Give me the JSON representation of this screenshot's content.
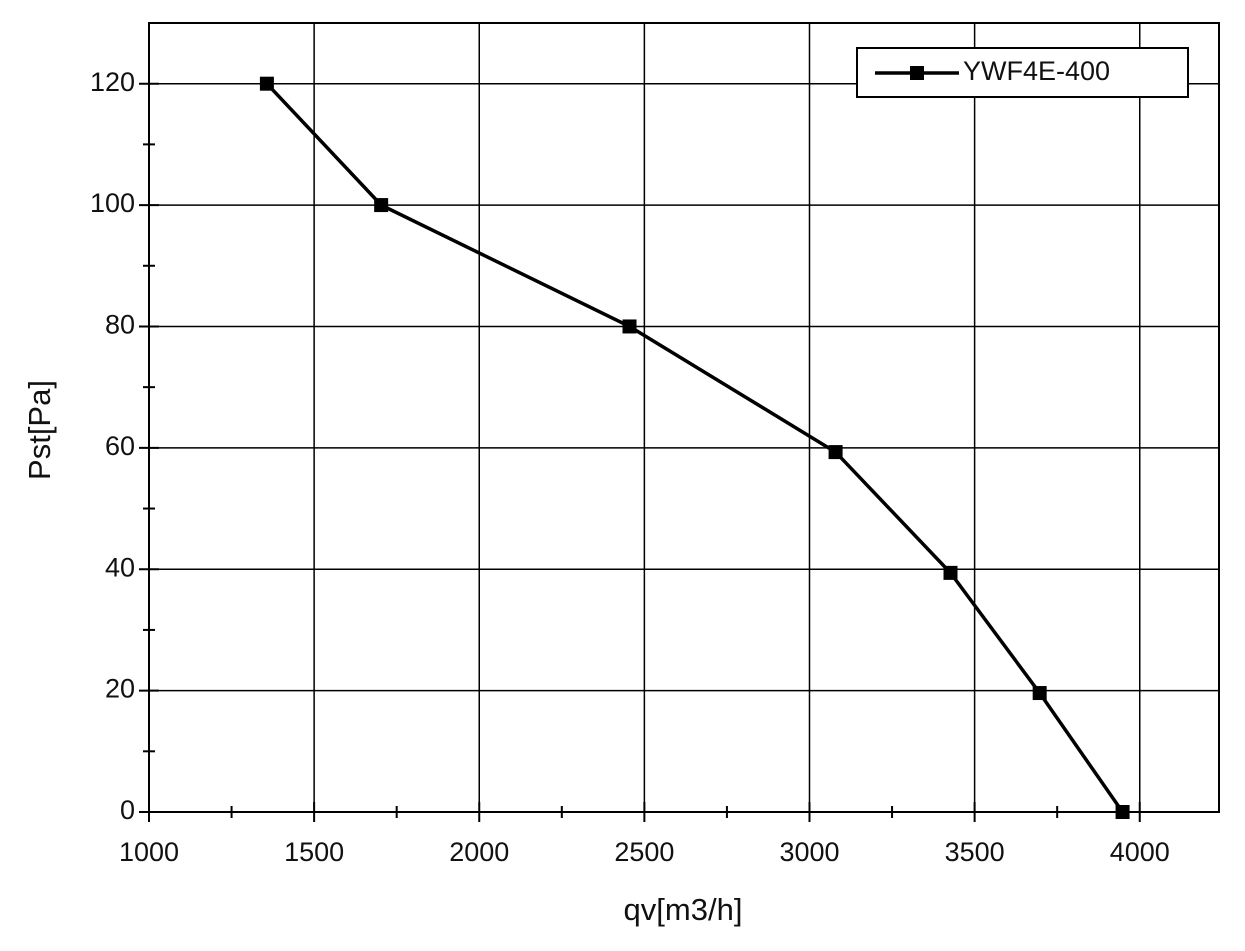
{
  "chart_data": {
    "type": "line",
    "x_label": "qv[m3/h]",
    "y_label": "Pst[Pa]",
    "x": [
      1357,
      1703,
      2455,
      3079,
      3427,
      3697,
      3948
    ],
    "series": [
      {
        "name": "YWF4E-400",
        "color": "#000000",
        "values": [
          120,
          100,
          80,
          59.3,
          39.4,
          19.6,
          0
        ]
      }
    ],
    "xlim": [
      1000,
      4240
    ],
    "xticks": [
      1000,
      1500,
      2000,
      2500,
      3000,
      3500,
      4000
    ],
    "xminorticks": [
      1250,
      1750,
      2250,
      2750,
      3250,
      3750
    ],
    "ylim": [
      0,
      130
    ],
    "yticks": [
      0,
      20,
      40,
      60,
      80,
      100,
      120
    ],
    "yminorticks": [
      10,
      30,
      50,
      70,
      90,
      110
    ],
    "grid": true,
    "legend": "upper right"
  }
}
